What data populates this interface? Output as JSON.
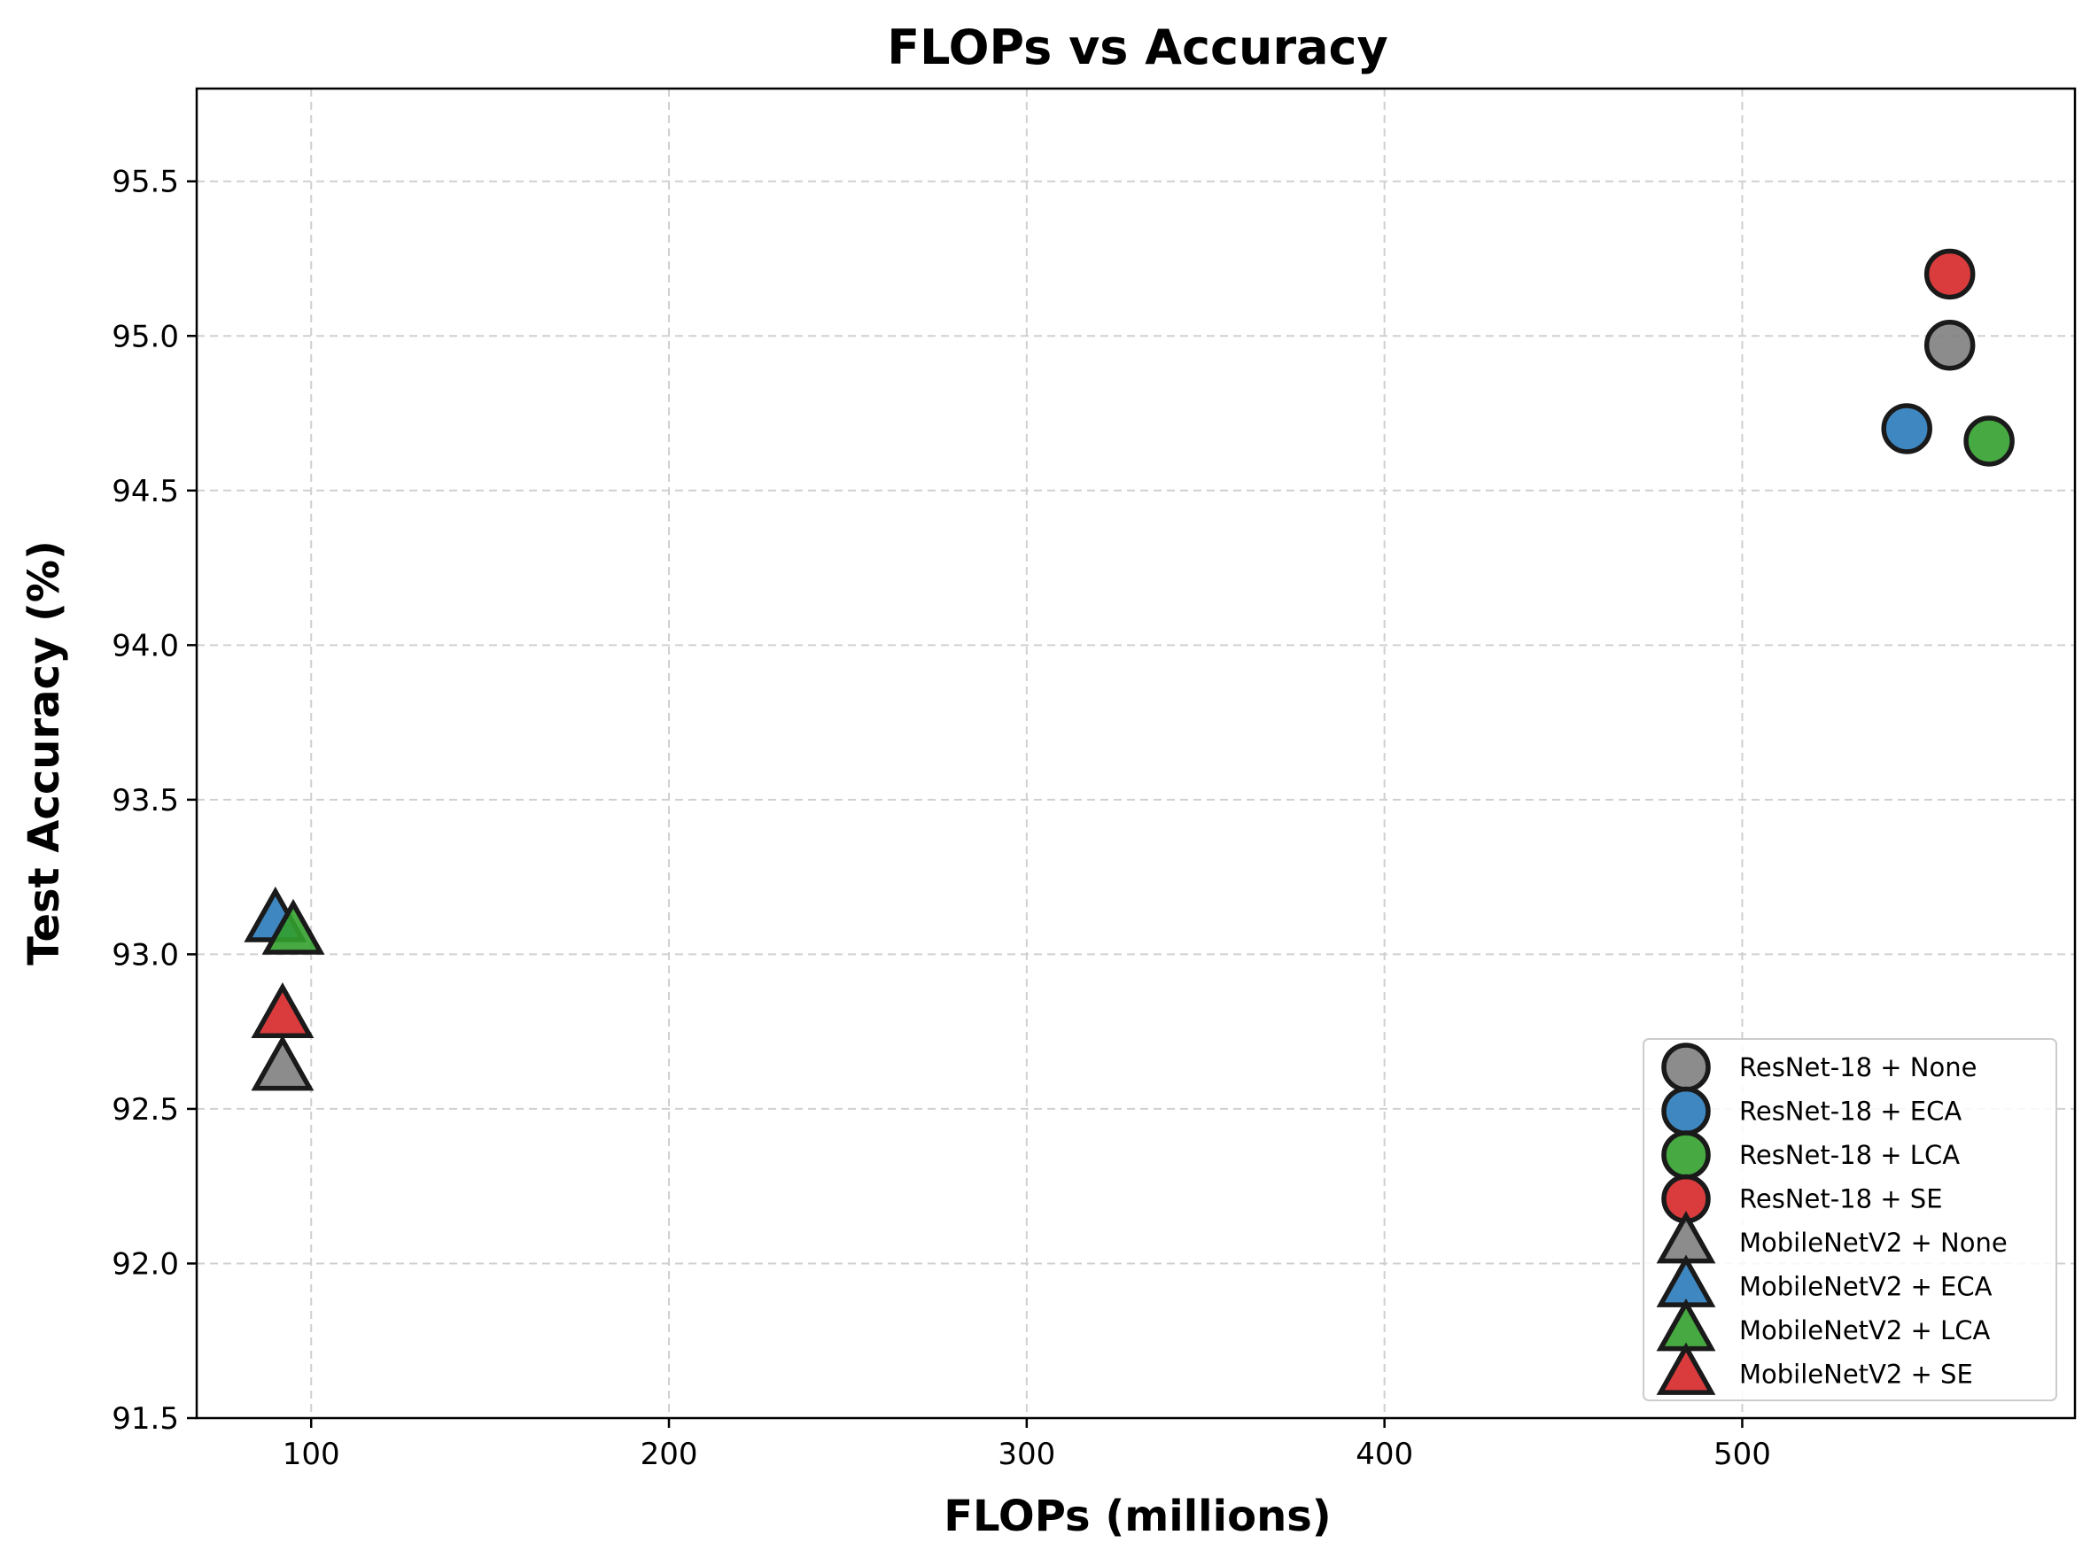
{
  "chart_data": {
    "type": "scatter",
    "title": "FLOPs vs Accuracy",
    "xlabel": "FLOPs (millions)",
    "ylabel": "Test Accuracy (%)",
    "xlim": [
      68,
      593
    ],
    "ylim": [
      91.5,
      95.8
    ],
    "xticks": [
      100,
      200,
      300,
      400,
      500
    ],
    "xtick_labels": [
      "100",
      "200",
      "300",
      "400",
      "500"
    ],
    "yticks": [
      91.5,
      92.0,
      92.5,
      93.0,
      93.5,
      94.0,
      94.5,
      95.0,
      95.5
    ],
    "ytick_labels": [
      "91.5",
      "92.0",
      "92.5",
      "93.0",
      "93.5",
      "94.0",
      "94.5",
      "95.0",
      "95.5"
    ],
    "grid": true,
    "legend_position": "lower-right",
    "series": [
      {
        "name": "ResNet-18 + None",
        "marker": "circle",
        "color": "#808080",
        "x": [
          558
        ],
        "y": [
          94.97
        ]
      },
      {
        "name": "ResNet-18 + ECA",
        "marker": "circle",
        "color": "#2a7ab9",
        "x": [
          546
        ],
        "y": [
          94.7
        ]
      },
      {
        "name": "ResNet-18 + LCA",
        "marker": "circle",
        "color": "#33a02c",
        "x": [
          569
        ],
        "y": [
          94.66
        ]
      },
      {
        "name": "ResNet-18 + SE",
        "marker": "circle",
        "color": "#d62728",
        "x": [
          558
        ],
        "y": [
          95.2
        ]
      },
      {
        "name": "MobileNetV2 + None",
        "marker": "triangle",
        "color": "#808080",
        "x": [
          92
        ],
        "y": [
          92.63
        ]
      },
      {
        "name": "MobileNetV2 + ECA",
        "marker": "triangle",
        "color": "#2a7ab9",
        "x": [
          90
        ],
        "y": [
          93.11
        ]
      },
      {
        "name": "MobileNetV2 + LCA",
        "marker": "triangle",
        "color": "#33a02c",
        "x": [
          95
        ],
        "y": [
          93.07
        ]
      },
      {
        "name": "MobileNetV2 + SE",
        "marker": "triangle",
        "color": "#d62728",
        "x": [
          92
        ],
        "y": [
          92.8
        ]
      }
    ]
  }
}
